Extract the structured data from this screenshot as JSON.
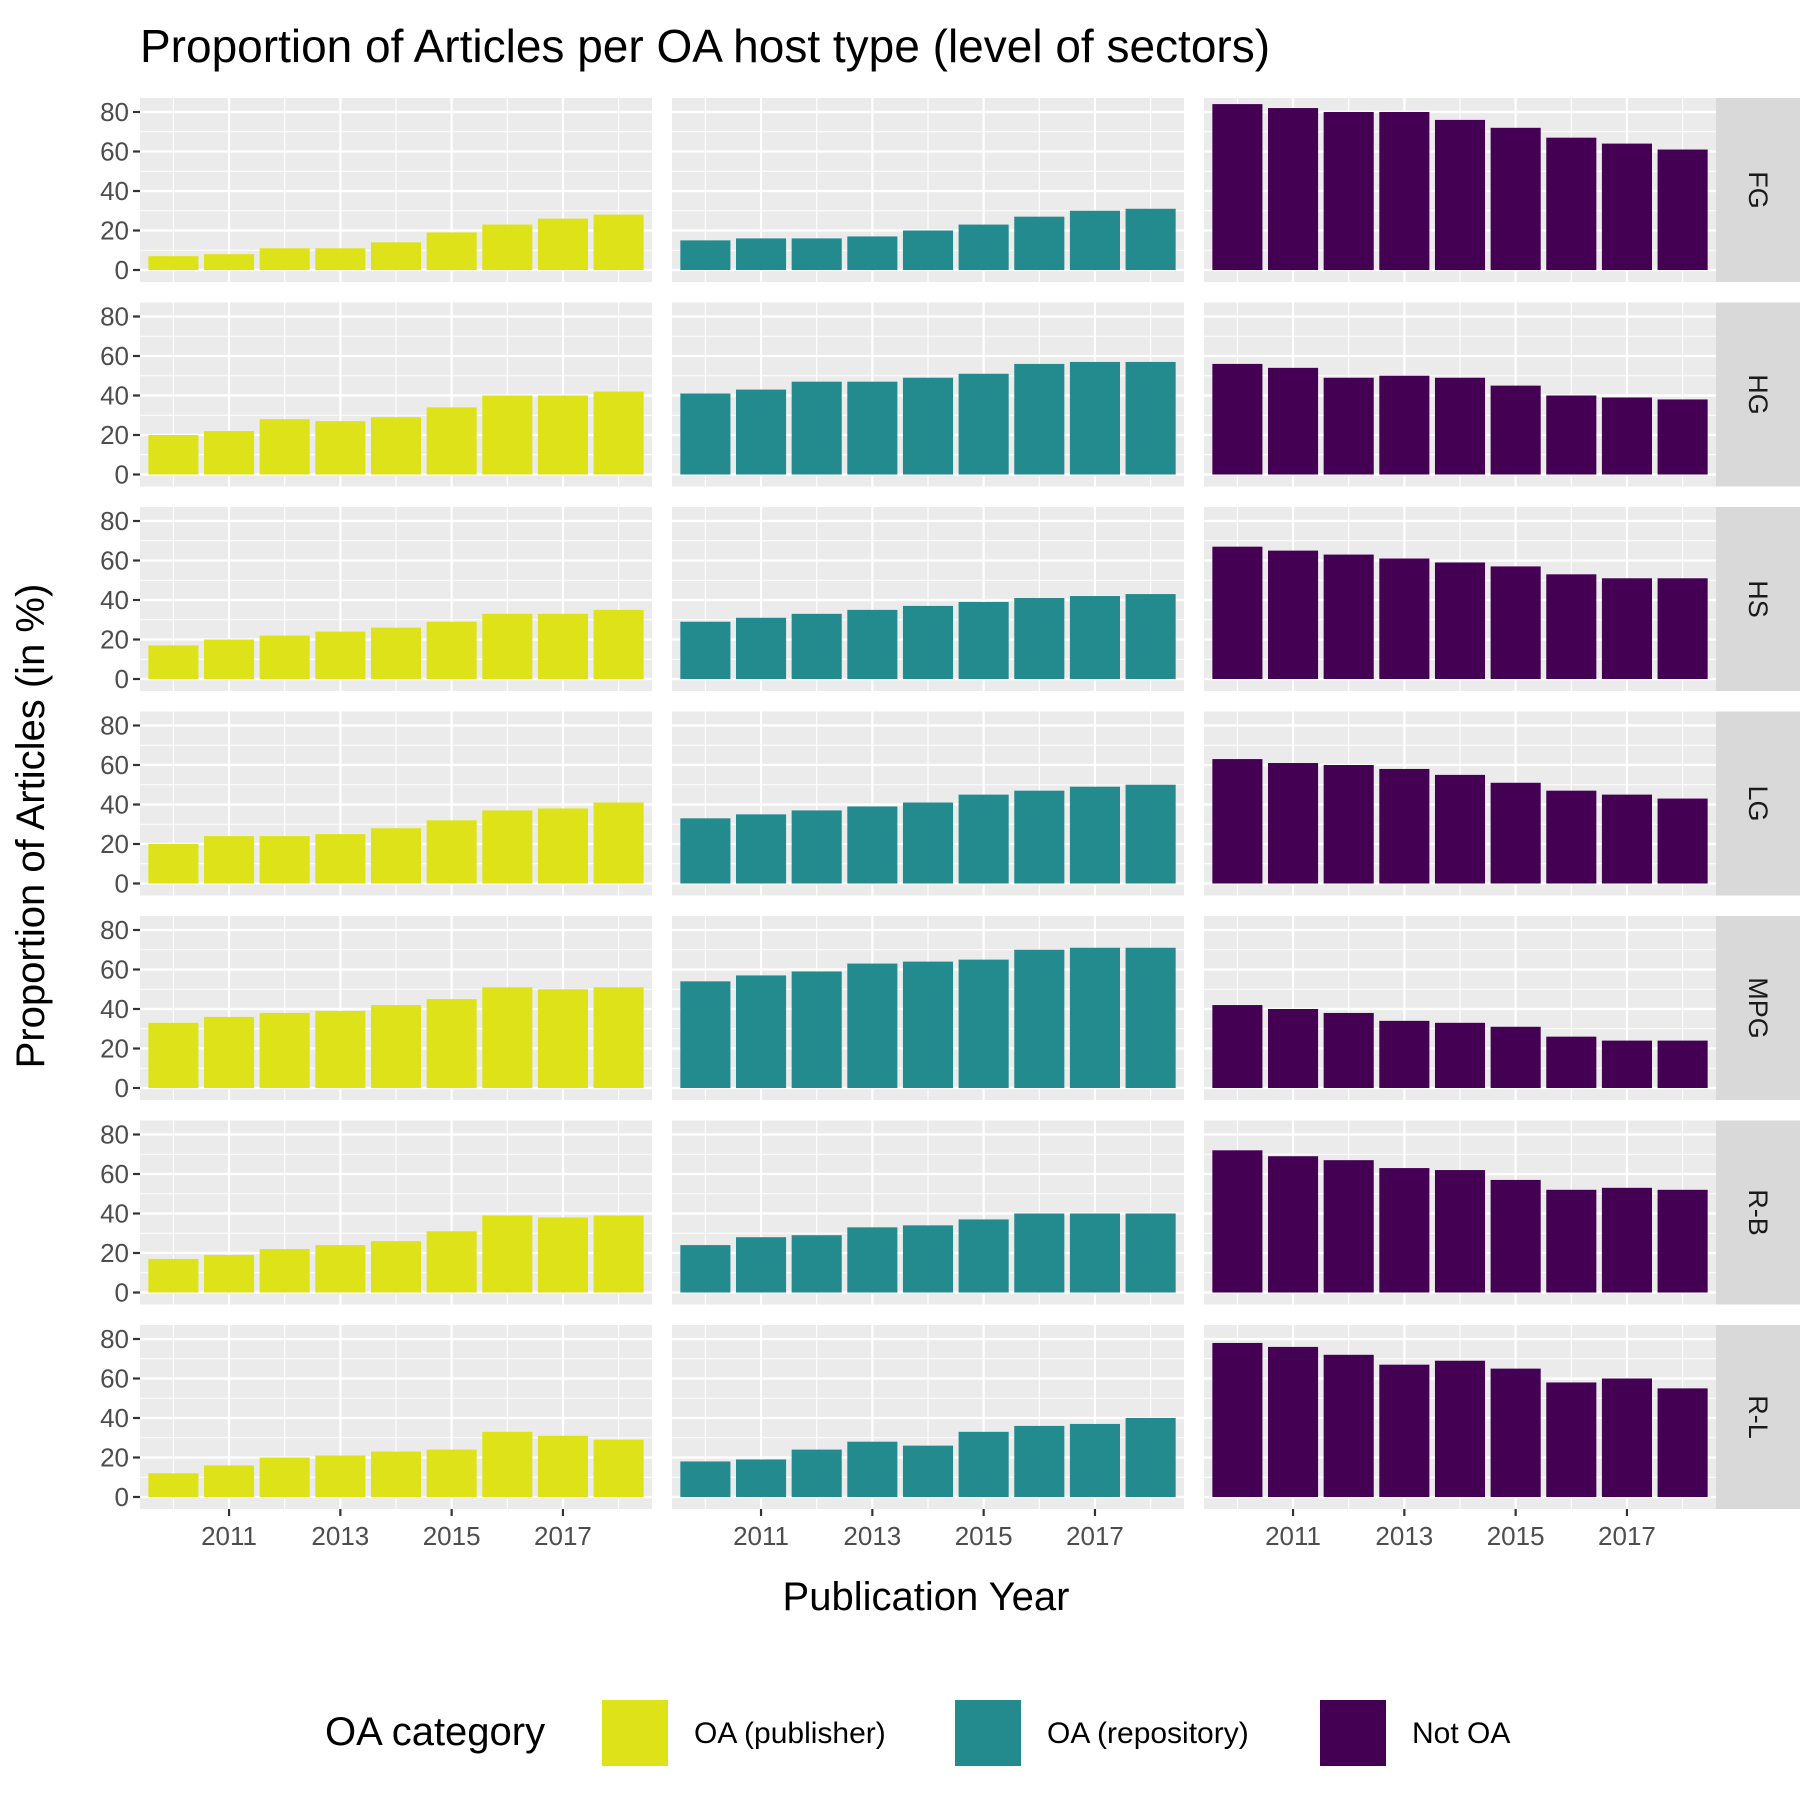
{
  "chart_data": {
    "type": "bar",
    "title": "Proportion of Articles per OA host type (level of sectors)",
    "xlabel": "Publication Year",
    "ylabel": "Proportion of Articles (in %)",
    "x": [
      2010,
      2011,
      2012,
      2013,
      2014,
      2015,
      2016,
      2017,
      2018
    ],
    "x_tick_labels": [
      "2011",
      "2013",
      "2015",
      "2017"
    ],
    "y_tick_labels": [
      "0",
      "20",
      "40",
      "60",
      "80"
    ],
    "ylim": [
      0,
      90
    ],
    "grid": true,
    "facet_columns": [
      {
        "category": "OA (publisher)",
        "color": "#dde318"
      },
      {
        "category": "OA (repository)",
        "color": "#238a8d"
      },
      {
        "category": "Not OA",
        "color": "#440154"
      }
    ],
    "legend": {
      "title": "OA category",
      "position": "bottom",
      "items": [
        {
          "label": "OA (publisher)",
          "color": "#dde318"
        },
        {
          "label": "OA (repository)",
          "color": "#238a8d"
        },
        {
          "label": "Not OA",
          "color": "#440154"
        }
      ]
    },
    "facets": [
      {
        "sector": "FG",
        "series": [
          {
            "name": "OA (publisher)",
            "values": [
              7,
              8,
              11,
              11,
              14,
              19,
              23,
              26,
              28
            ]
          },
          {
            "name": "OA (repository)",
            "values": [
              15,
              16,
              16,
              17,
              20,
              23,
              27,
              30,
              31
            ]
          },
          {
            "name": "Not OA",
            "values": [
              84,
              82,
              80,
              80,
              76,
              72,
              67,
              64,
              61
            ]
          }
        ]
      },
      {
        "sector": "HG",
        "series": [
          {
            "name": "OA (publisher)",
            "values": [
              20,
              22,
              28,
              27,
              29,
              34,
              40,
              40,
              42
            ]
          },
          {
            "name": "OA (repository)",
            "values": [
              41,
              43,
              47,
              47,
              49,
              51,
              56,
              57,
              57
            ]
          },
          {
            "name": "Not OA",
            "values": [
              56,
              54,
              49,
              50,
              49,
              45,
              40,
              39,
              38
            ]
          }
        ]
      },
      {
        "sector": "HS",
        "series": [
          {
            "name": "OA (publisher)",
            "values": [
              17,
              20,
              22,
              24,
              26,
              29,
              33,
              33,
              35
            ]
          },
          {
            "name": "OA (repository)",
            "values": [
              29,
              31,
              33,
              35,
              37,
              39,
              41,
              42,
              43
            ]
          },
          {
            "name": "Not OA",
            "values": [
              67,
              65,
              63,
              61,
              59,
              57,
              53,
              51,
              51
            ]
          }
        ]
      },
      {
        "sector": "LG",
        "series": [
          {
            "name": "OA (publisher)",
            "values": [
              20,
              24,
              24,
              25,
              28,
              32,
              37,
              38,
              41
            ]
          },
          {
            "name": "OA (repository)",
            "values": [
              33,
              35,
              37,
              39,
              41,
              45,
              47,
              49,
              50
            ]
          },
          {
            "name": "Not OA",
            "values": [
              63,
              61,
              60,
              58,
              55,
              51,
              47,
              45,
              43
            ]
          }
        ]
      },
      {
        "sector": "MPG",
        "series": [
          {
            "name": "OA (publisher)",
            "values": [
              33,
              36,
              38,
              39,
              42,
              45,
              51,
              50,
              51
            ]
          },
          {
            "name": "OA (repository)",
            "values": [
              54,
              57,
              59,
              63,
              64,
              65,
              70,
              71,
              71
            ]
          },
          {
            "name": "Not OA",
            "values": [
              42,
              40,
              38,
              34,
              33,
              31,
              26,
              24,
              24
            ]
          }
        ]
      },
      {
        "sector": "R-B",
        "series": [
          {
            "name": "OA (publisher)",
            "values": [
              17,
              19,
              22,
              24,
              26,
              31,
              39,
              38,
              39
            ]
          },
          {
            "name": "OA (repository)",
            "values": [
              24,
              28,
              29,
              33,
              34,
              37,
              40,
              40,
              40
            ]
          },
          {
            "name": "Not OA",
            "values": [
              72,
              69,
              67,
              63,
              62,
              57,
              52,
              53,
              52
            ]
          }
        ]
      },
      {
        "sector": "R-L",
        "series": [
          {
            "name": "OA (publisher)",
            "values": [
              12,
              16,
              20,
              21,
              23,
              24,
              33,
              31,
              29
            ]
          },
          {
            "name": "OA (repository)",
            "values": [
              18,
              19,
              24,
              28,
              26,
              33,
              36,
              37,
              40
            ]
          },
          {
            "name": "Not OA",
            "values": [
              78,
              76,
              72,
              67,
              69,
              65,
              58,
              60,
              55
            ]
          }
        ]
      }
    ]
  }
}
